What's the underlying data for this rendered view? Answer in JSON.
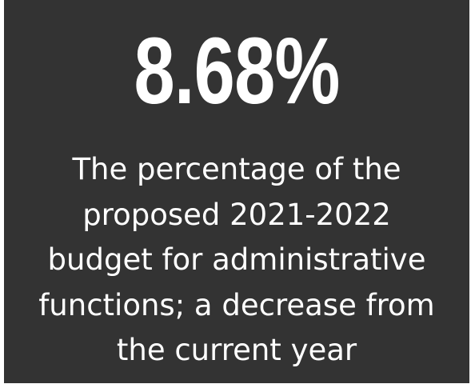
{
  "card": {
    "background": "#333333",
    "stat": "8.68%",
    "caption_lines": [
      "The percentage of the",
      "proposed 2021-2022",
      "budget for administrative",
      "functions; a decrease from",
      "the current year"
    ]
  }
}
